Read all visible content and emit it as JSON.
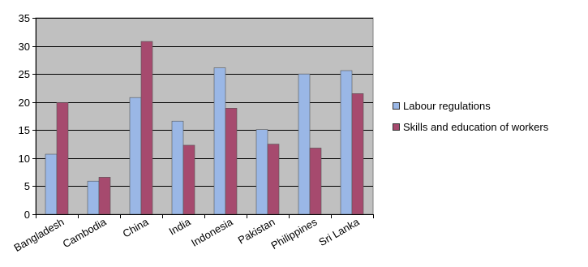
{
  "chart_data": {
    "type": "bar",
    "title": "",
    "xlabel": "",
    "ylabel": "",
    "categories": [
      "Bangladesh",
      "Cambodia",
      "China",
      "India",
      "Indonesia",
      "Pakistan",
      "Philippines",
      "Sri Lanka"
    ],
    "series": [
      {
        "name": "Labour regulations",
        "color": "#9ab7e6",
        "values": [
          10.7,
          5.9,
          20.8,
          16.6,
          26.1,
          15.1,
          25.0,
          25.6
        ]
      },
      {
        "name": "Skills and education of workers",
        "color": "#a64a6e",
        "values": [
          19.9,
          6.6,
          30.8,
          12.3,
          18.9,
          12.5,
          11.8,
          21.5
        ]
      }
    ],
    "yticks": [
      "0",
      "5",
      "10",
      "15",
      "20",
      "25",
      "30",
      "35"
    ],
    "ylim": [
      0,
      35
    ],
    "grid": true,
    "legend_position": "right",
    "plot_background": "#c0c0c0"
  }
}
